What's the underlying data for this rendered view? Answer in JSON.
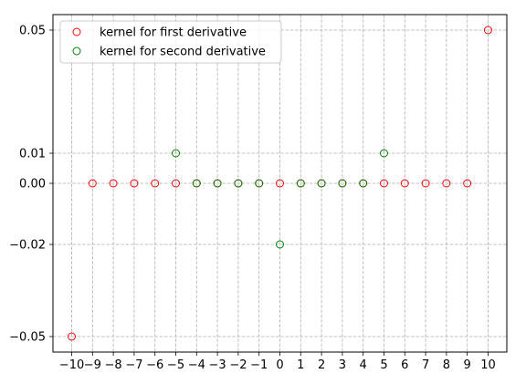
{
  "chart_data": {
    "type": "scatter",
    "title": "",
    "xlabel": "",
    "ylabel": "",
    "xlim": [
      -10.9,
      10.9
    ],
    "ylim": [
      -0.0545,
      0.0545
    ],
    "grid": true,
    "legend_position": "top-left",
    "x_ticks": [
      -10,
      -9,
      -8,
      -7,
      -6,
      -5,
      -4,
      -3,
      -2,
      -1,
      0,
      1,
      2,
      3,
      4,
      5,
      6,
      7,
      8,
      9,
      10
    ],
    "x_tick_labels": [
      "−10",
      "−9",
      "−8",
      "−7",
      "−6",
      "−5",
      "−4",
      "−3",
      "−2",
      "−1",
      "0",
      "1",
      "2",
      "3",
      "4",
      "5",
      "6",
      "7",
      "8",
      "9",
      "10"
    ],
    "y_ticks": [
      -0.05,
      -0.02,
      0.0,
      0.01,
      0.05
    ],
    "y_tick_labels": [
      "−0.05",
      "−0.02",
      "0.00",
      "0.01",
      "0.05"
    ],
    "series": [
      {
        "name": "kernel for first derivative",
        "color": "#ff0000",
        "marker": "open-circle",
        "x": [
          -10,
          -9,
          -8,
          -7,
          -6,
          -5,
          -4,
          -3,
          -2,
          -1,
          0,
          1,
          2,
          3,
          4,
          5,
          6,
          7,
          8,
          9,
          10
        ],
        "y": [
          -0.05,
          0,
          0,
          0,
          0,
          0,
          0,
          0,
          0,
          0,
          0,
          0,
          0,
          0,
          0,
          0,
          0,
          0,
          0,
          0,
          0.05
        ]
      },
      {
        "name": "kernel for second derivative",
        "color": "#008000",
        "marker": "open-circle",
        "x": [
          -5,
          -4,
          -3,
          -2,
          -1,
          0,
          1,
          2,
          3,
          4,
          5
        ],
        "y": [
          0.01,
          0,
          0,
          0,
          0,
          -0.02,
          0,
          0,
          0,
          0,
          0.01
        ]
      }
    ]
  }
}
